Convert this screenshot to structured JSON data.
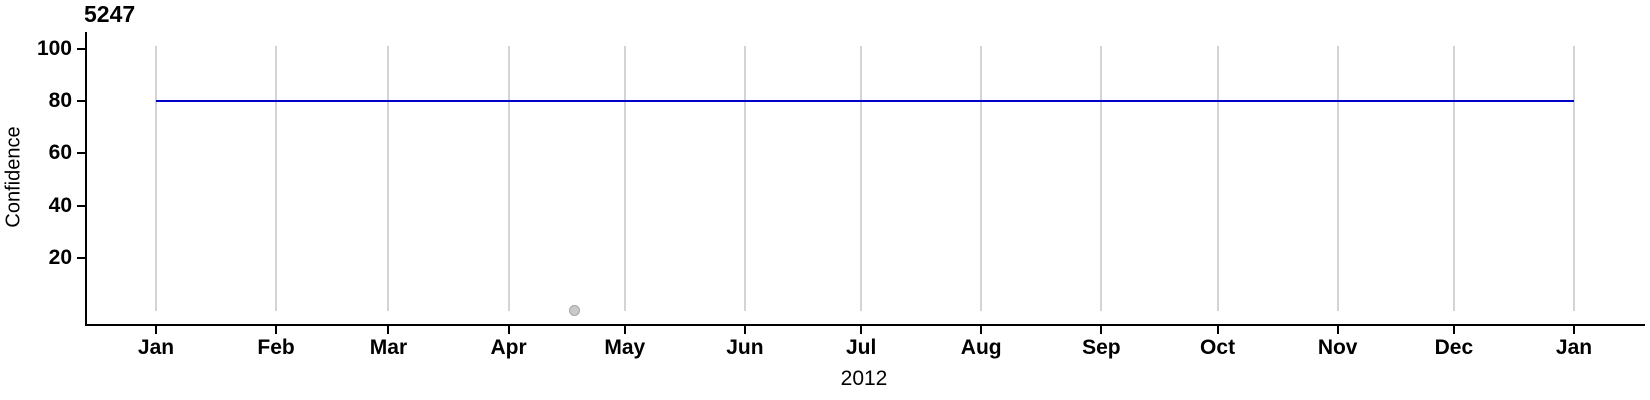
{
  "chart_data": {
    "type": "line",
    "title": "5247",
    "xlabel": "2012",
    "ylabel": "Confidence",
    "x_axis": {
      "lim": [
        "2012-01-01",
        "2013-01-01"
      ],
      "ticks": [
        {
          "date": "2012-01-01",
          "label": "Jan"
        },
        {
          "date": "2012-02-01",
          "label": "Feb"
        },
        {
          "date": "2012-03-01",
          "label": "Mar"
        },
        {
          "date": "2012-04-01",
          "label": "Apr"
        },
        {
          "date": "2012-05-01",
          "label": "May"
        },
        {
          "date": "2012-06-01",
          "label": "Jun"
        },
        {
          "date": "2012-07-01",
          "label": "Jul"
        },
        {
          "date": "2012-08-01",
          "label": "Aug"
        },
        {
          "date": "2012-09-01",
          "label": "Sep"
        },
        {
          "date": "2012-10-01",
          "label": "Oct"
        },
        {
          "date": "2012-11-01",
          "label": "Nov"
        },
        {
          "date": "2012-12-01",
          "label": "Dec"
        },
        {
          "date": "2013-01-01",
          "label": "Jan"
        }
      ]
    },
    "y_axis": {
      "lim": [
        0,
        100
      ],
      "ticks": [
        20,
        40,
        60,
        80,
        100
      ]
    },
    "grid": "vertical-month-gridlines",
    "legend": "none",
    "series": [
      {
        "name": "confidence-level-line",
        "type": "line",
        "color": "#0000C8",
        "points": [
          {
            "date": "2012-01-01",
            "value": 80
          },
          {
            "date": "2013-01-01",
            "value": 80
          }
        ]
      },
      {
        "name": "single-observation-point",
        "type": "scatter",
        "fill": "#C9C9C9",
        "stroke": "#A6A6A6",
        "points": [
          {
            "date": "2012-04-18",
            "value": 0
          }
        ]
      }
    ]
  },
  "colors": {
    "axis": "#000000",
    "grid": "#D4D4D4",
    "text": "#000000",
    "background": "#FFFFFF"
  }
}
